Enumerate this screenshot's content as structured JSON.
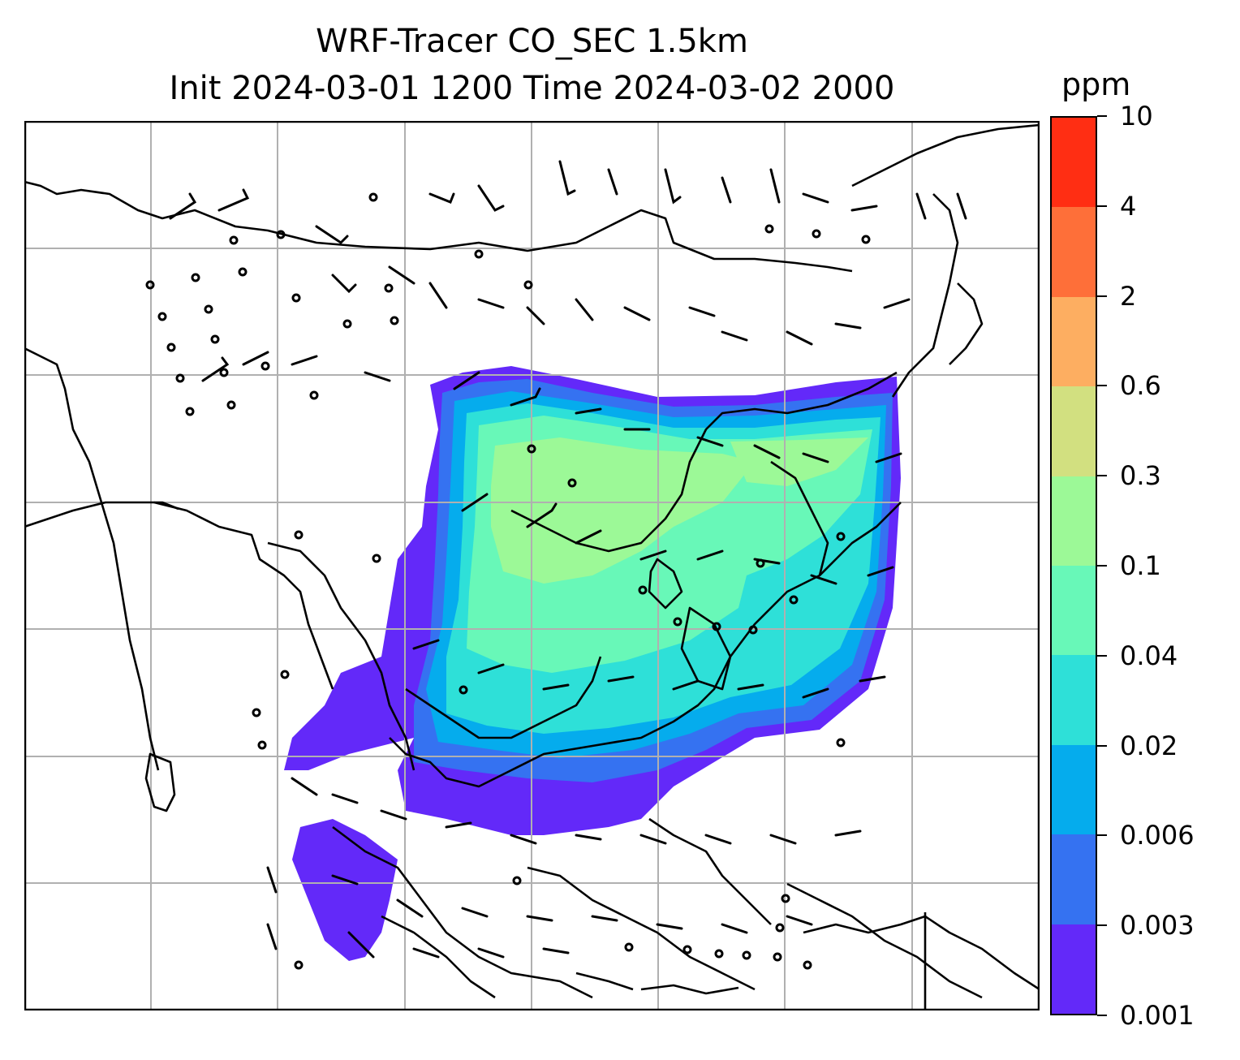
{
  "title": {
    "line1": "WRF-Tracer CO_SEC 1.5km",
    "line2": "Init 2024-03-01 1200 Time 2024-03-02 2000"
  },
  "map": {
    "projection": "lat-lon",
    "lon_range": [
      60,
      140
    ],
    "lat_range": [
      -15,
      55
    ],
    "gridlines": true,
    "coastlines": true,
    "wind_barbs": true
  },
  "colorbar": {
    "unit": "ppm",
    "levels": [
      "0.001",
      "0.003",
      "0.006",
      "0.02",
      "0.04",
      "0.1",
      "0.3",
      "0.6",
      "2",
      "4",
      "10"
    ],
    "colors": [
      "#6329f9",
      "#3572f1",
      "#05aced",
      "#2ee0d8",
      "#68f8b8",
      "#9cf997",
      "#d2e080",
      "#fdae61",
      "#fe6f39",
      "#ff2e13"
    ]
  }
}
